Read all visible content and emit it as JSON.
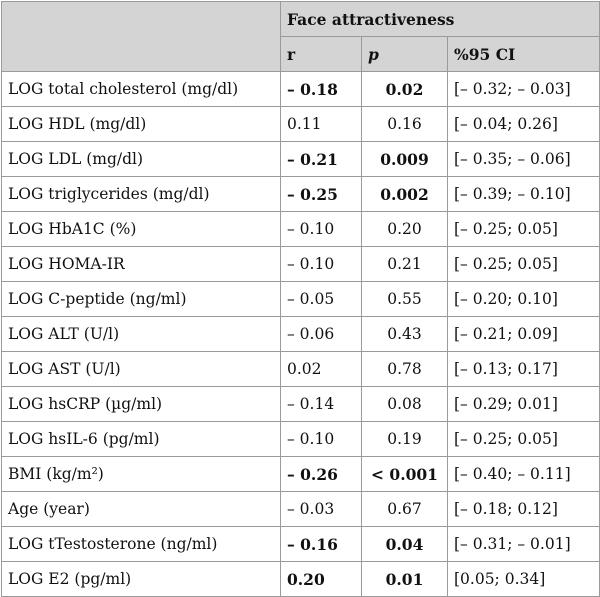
{
  "header": {
    "group_label": "Face attractiveness",
    "col_r": "r",
    "col_p": "p",
    "col_ci": "%95 CI"
  },
  "rows": [
    {
      "label": "LOG total cholesterol (mg/dl)",
      "r": "– 0.18",
      "p": "0.02",
      "ci": "[– 0.32; – 0.03]",
      "bold": true
    },
    {
      "label": "LOG HDL (mg/dl)",
      "r": "0.11",
      "p": "0.16",
      "ci": "[– 0.04; 0.26]",
      "bold": false
    },
    {
      "label": "LOG LDL (mg/dl)",
      "r": "– 0.21",
      "p": "0.009",
      "ci": "[– 0.35; – 0.06]",
      "bold": true
    },
    {
      "label": "LOG triglycerides (mg/dl)",
      "r": "– 0.25",
      "p": "0.002",
      "ci": "[– 0.39; – 0.10]",
      "bold": true
    },
    {
      "label": "LOG HbA1C (%)",
      "r": "– 0.10",
      "p": "0.20",
      "ci": "[– 0.25; 0.05]",
      "bold": false
    },
    {
      "label": "LOG HOMA-IR",
      "r": "– 0.10",
      "p": "0.21",
      "ci": "[– 0.25; 0.05]",
      "bold": false
    },
    {
      "label": "LOG C-peptide (ng/ml)",
      "r": "– 0.05",
      "p": "0.55",
      "ci": "[– 0.20; 0.10]",
      "bold": false
    },
    {
      "label": "LOG ALT (U/l)",
      "r": "– 0.06",
      "p": "0.43",
      "ci": "[– 0.21; 0.09]",
      "bold": false
    },
    {
      "label": "LOG AST (U/l)",
      "r": "0.02",
      "p": "0.78",
      "ci": "[– 0.13; 0.17]",
      "bold": false
    },
    {
      "label": "LOG hsCRP (µg/ml)",
      "r": "– 0.14",
      "p": "0.08",
      "ci": "[– 0.29; 0.01]",
      "bold": false
    },
    {
      "label": "LOG hsIL-6 (pg/ml)",
      "r": "– 0.10",
      "p": "0.19",
      "ci": "[– 0.25; 0.05]",
      "bold": false
    },
    {
      "label": "BMI (kg/m²)",
      "r": "– 0.26",
      "p": "< 0.001",
      "ci": "[– 0.40; – 0.11]",
      "bold": true
    },
    {
      "label": "Age (year)",
      "r": "– 0.03",
      "p": "0.67",
      "ci": "[– 0.18; 0.12]",
      "bold": false
    },
    {
      "label": "LOG tTestosterone (ng/ml)",
      "r": "– 0.16",
      "p": "0.04",
      "ci": "[– 0.31; – 0.01]",
      "bold": true
    },
    {
      "label": "LOG E2 (pg/ml)",
      "r": "0.20",
      "p": "0.01",
      "ci": "[0.05; 0.34]",
      "bold": true
    }
  ]
}
